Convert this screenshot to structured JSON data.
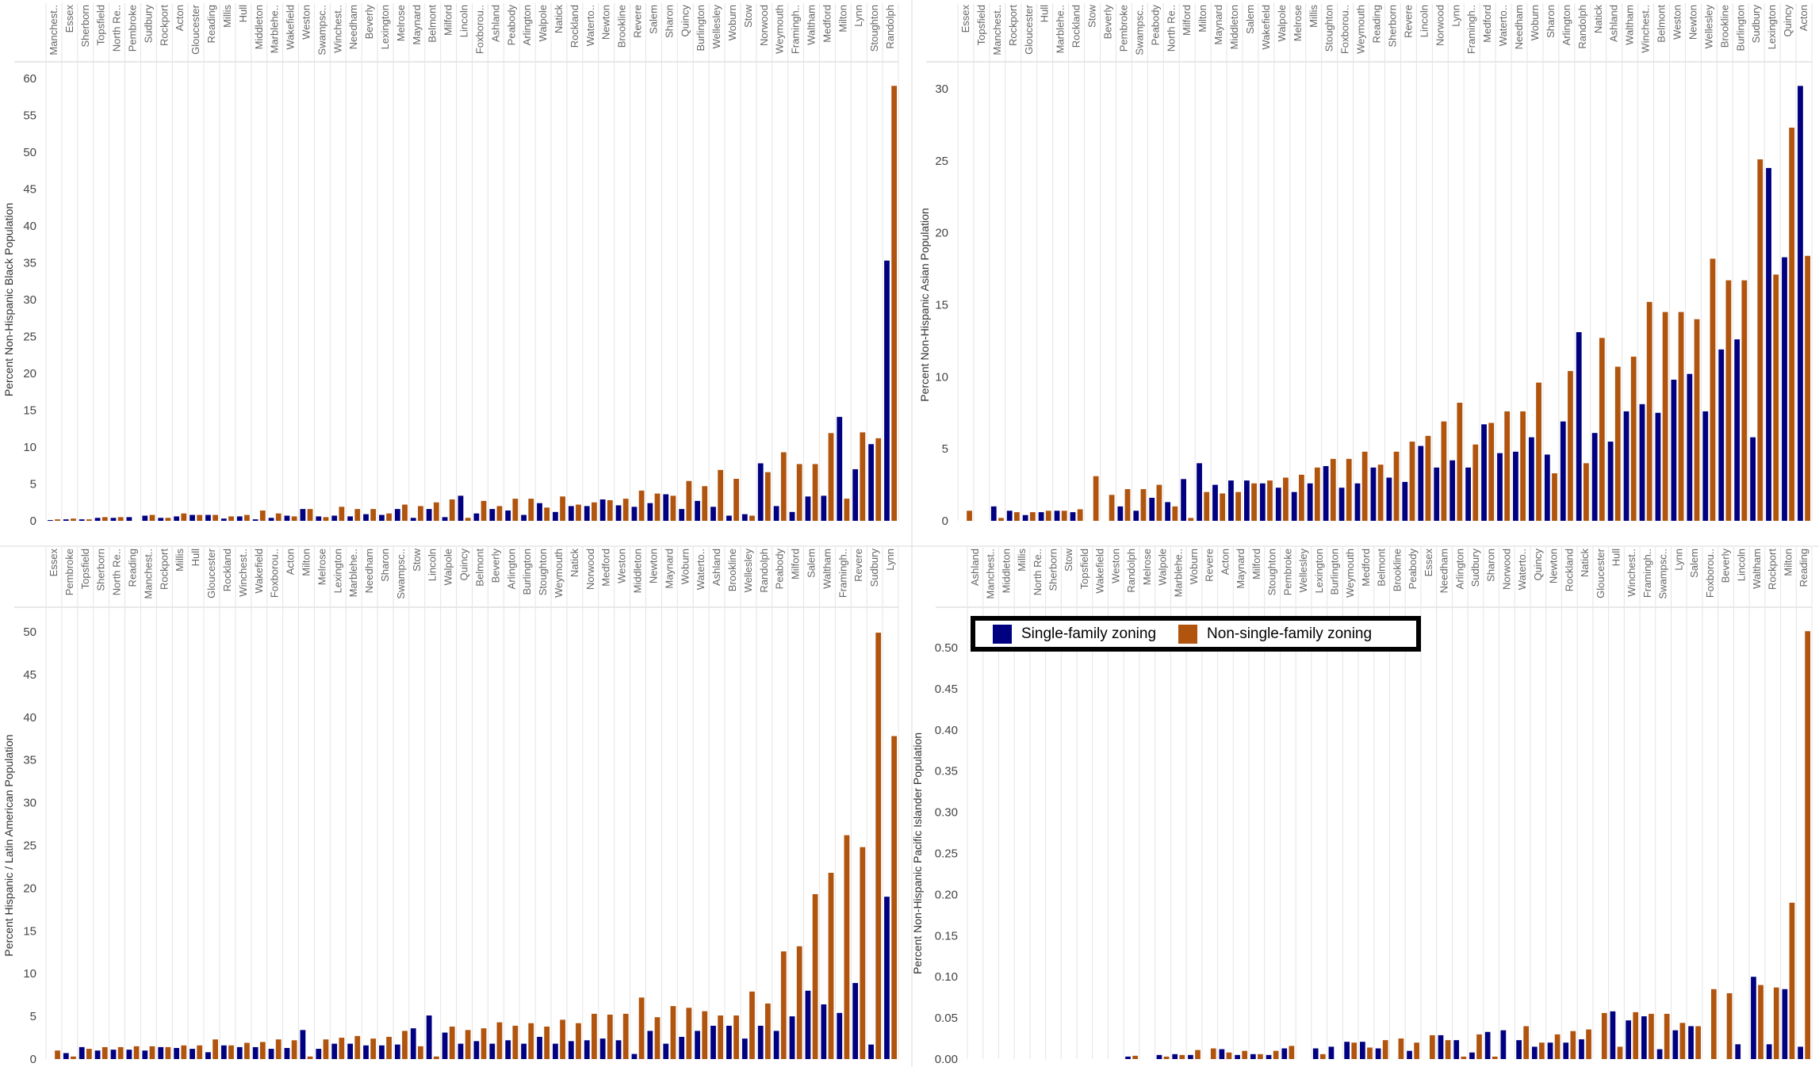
{
  "colors": {
    "single": "#000080",
    "nonsingle": "#B0540E",
    "grid": "#e4e4e4"
  },
  "legend": {
    "single_label": "Single-family zoning",
    "nonsingle_label": "Non-single-family zoning"
  },
  "chart_data": [
    {
      "type": "bar",
      "ylabel": "Percent Non-Hispanic Black Population",
      "ylim": [
        0,
        60
      ],
      "yticks": [
        0,
        5,
        10,
        15,
        20,
        25,
        30,
        35,
        40,
        45,
        50,
        55,
        60
      ],
      "tick_decimals": 0,
      "categories": [
        "Manchest..",
        "Essex",
        "Sherborn",
        "Topsfield",
        "North Re..",
        "Pembroke",
        "Sudbury",
        "Rockport",
        "Acton",
        "Gloucester",
        "Reading",
        "Millis",
        "Hull",
        "Middleton",
        "Marblehe..",
        "Wakefield",
        "Weston",
        "Swampsc..",
        "Winchest..",
        "Needham",
        "Beverly",
        "Lexington",
        "Melrose",
        "Maynard",
        "Belmont",
        "Milford",
        "Lincoln",
        "Foxborou..",
        "Ashland",
        "Peabody",
        "Arlington",
        "Walpole",
        "Natick",
        "Rockland",
        "Waterto..",
        "Newton",
        "Brookline",
        "Revere",
        "Salem",
        "Sharon",
        "Quincy",
        "Burlington",
        "Wellesley",
        "Woburn",
        "Stow",
        "Norwood",
        "Weymouth",
        "Framingh..",
        "Waltham",
        "Medford",
        "Milton",
        "Lynn",
        "Stoughton",
        "Randolph"
      ],
      "series": [
        {
          "name": "Single-family zoning",
          "values": [
            0.1,
            0.2,
            0.2,
            0.4,
            0.4,
            0.5,
            0.7,
            0.4,
            0.6,
            0.8,
            0.8,
            0.3,
            0.6,
            0.2,
            0.4,
            0.7,
            1.6,
            0.6,
            0.7,
            0.6,
            0.9,
            0.8,
            1.6,
            0.4,
            1.6,
            0.5,
            3.4,
            1.0,
            1.6,
            1.4,
            0.8,
            2.4,
            1.2,
            2.0,
            2.0,
            2.9,
            2.1,
            1.9,
            2.4,
            3.6,
            1.6,
            2.7,
            1.9,
            0.7,
            0.9,
            7.8,
            2.0,
            1.2,
            3.3,
            3.4,
            14.1,
            7.0,
            10.4,
            35.3
          ]
        },
        {
          "name": "Non-single-family zoning",
          "values": [
            0.2,
            0.3,
            0.2,
            0.5,
            0.5,
            0.0,
            0.8,
            0.4,
            1.0,
            0.8,
            0.8,
            0.6,
            0.8,
            1.4,
            1.0,
            0.6,
            1.6,
            0.5,
            1.9,
            1.6,
            1.6,
            1.0,
            2.2,
            2.0,
            2.5,
            2.9,
            0.4,
            2.7,
            2.0,
            3.0,
            3.0,
            1.8,
            3.3,
            2.2,
            2.5,
            2.8,
            3.0,
            4.1,
            3.7,
            3.4,
            5.4,
            4.7,
            6.9,
            5.7,
            0.7,
            6.6,
            9.3,
            7.7,
            7.7,
            11.9,
            3.0,
            12.0,
            11.2,
            59.0
          ]
        }
      ]
    },
    {
      "type": "bar",
      "ylabel": "Percent Non-Hispanic Asian Population",
      "ylim": [
        0,
        30
      ],
      "yticks": [
        0,
        5,
        10,
        15,
        20,
        25,
        30
      ],
      "tick_decimals": 0,
      "categories": [
        "Essex",
        "Topsfield",
        "Manchest..",
        "Rockport",
        "Gloucester",
        "Hull",
        "Marblehe..",
        "Rockland",
        "Stow",
        "Beverly",
        "Pembroke",
        "Swampsc..",
        "Peabody",
        "North Re..",
        "Milford",
        "Milton",
        "Maynard",
        "Middleton",
        "Salem",
        "Wakefield",
        "Walpole",
        "Melrose",
        "Millis",
        "Stoughton",
        "Foxborou..",
        "Weymouth",
        "Reading",
        "Sherborn",
        "Revere",
        "Lincoln",
        "Norwood",
        "Lynn",
        "Framingh..",
        "Medford",
        "Waterto..",
        "Needham",
        "Woburn",
        "Sharon",
        "Arlington",
        "Randolph",
        "Natick",
        "Ashland",
        "Waltham",
        "Winchest..",
        "Belmont",
        "Weston",
        "Newton",
        "Wellesley",
        "Brookline",
        "Burlington",
        "Sudbury",
        "Lexington",
        "Quincy",
        "Acton"
      ],
      "series": [
        {
          "name": "Single-family zoning",
          "values": [
            0.0,
            0.0,
            1.0,
            0.7,
            0.4,
            0.6,
            0.7,
            0.6,
            0.0,
            0.0,
            1.0,
            0.7,
            1.6,
            1.3,
            2.9,
            4.0,
            2.5,
            2.8,
            2.8,
            2.6,
            2.3,
            2.0,
            2.6,
            3.8,
            2.3,
            2.6,
            3.7,
            3.0,
            2.7,
            5.2,
            3.7,
            4.2,
            3.7,
            6.7,
            4.7,
            4.8,
            5.8,
            4.6,
            6.9,
            13.1,
            6.1,
            5.5,
            7.6,
            8.1,
            7.5,
            9.8,
            10.2,
            7.6,
            11.9,
            12.6,
            5.8,
            24.5,
            18.3,
            30.2
          ]
        },
        {
          "name": "Non-single-family zoning",
          "values": [
            0.7,
            0.0,
            0.2,
            0.6,
            0.6,
            0.7,
            0.7,
            0.8,
            3.1,
            1.8,
            2.2,
            2.2,
            2.5,
            1.0,
            0.2,
            2.0,
            1.9,
            2.0,
            2.6,
            2.8,
            3.0,
            3.2,
            3.7,
            4.3,
            4.3,
            4.8,
            3.9,
            4.8,
            5.5,
            5.9,
            6.9,
            8.2,
            5.3,
            6.8,
            7.6,
            7.6,
            9.6,
            3.3,
            10.4,
            4.0,
            12.7,
            10.7,
            11.4,
            15.2,
            14.5,
            14.5,
            14.0,
            18.2,
            16.7,
            16.7,
            25.1,
            17.1,
            27.3,
            18.4
          ]
        }
      ]
    },
    {
      "type": "bar",
      "ylabel": "Percent Hispanic / Latin American Population",
      "ylim": [
        0,
        50
      ],
      "yticks": [
        0,
        5,
        10,
        15,
        20,
        25,
        30,
        35,
        40,
        45,
        50
      ],
      "tick_decimals": 0,
      "categories": [
        "Essex",
        "Pembroke",
        "Topsfield",
        "Sherborn",
        "North Re..",
        "Reading",
        "Manchest..",
        "Rockport",
        "Millis",
        "Hull",
        "Gloucester",
        "Rockland",
        "Winchest..",
        "Wakefield",
        "Foxborou..",
        "Acton",
        "Milton",
        "Melrose",
        "Lexington",
        "Marblehe..",
        "Needham",
        "Sharon",
        "Swampsc..",
        "Stow",
        "Lincoln",
        "Walpole",
        "Quincy",
        "Belmont",
        "Beverly",
        "Arlington",
        "Burlington",
        "Stoughton",
        "Weymouth",
        "Natick",
        "Norwood",
        "Medford",
        "Weston",
        "Middleton",
        "Newton",
        "Maynard",
        "Woburn",
        "Waterto..",
        "Ashland",
        "Brookline",
        "Wellesley",
        "Randolph",
        "Peabody",
        "Milford",
        "Salem",
        "Waltham",
        "Framingh..",
        "Revere",
        "Sudbury",
        "Lynn"
      ],
      "series": [
        {
          "name": "Single-family zoning",
          "values": [
            0.0,
            0.7,
            1.4,
            1.0,
            1.1,
            1.1,
            1.0,
            1.4,
            1.3,
            1.2,
            0.8,
            1.6,
            1.4,
            1.4,
            1.2,
            1.3,
            3.4,
            1.2,
            1.8,
            1.8,
            1.6,
            1.6,
            1.7,
            3.6,
            5.1,
            3.1,
            1.8,
            2.1,
            1.8,
            2.2,
            1.8,
            2.6,
            1.8,
            2.1,
            2.2,
            2.4,
            2.2,
            0.6,
            3.3,
            1.8,
            2.6,
            3.3,
            3.9,
            3.9,
            2.4,
            3.9,
            3.3,
            5.0,
            8.0,
            6.4,
            5.4,
            8.9,
            1.7,
            19.0
          ]
        },
        {
          "name": "Non-single-family zoning",
          "values": [
            1.0,
            0.3,
            1.2,
            1.4,
            1.4,
            1.5,
            1.5,
            1.4,
            1.6,
            1.6,
            2.3,
            1.6,
            1.9,
            2.0,
            2.3,
            2.2,
            0.3,
            2.3,
            2.5,
            2.7,
            2.4,
            2.6,
            3.3,
            1.5,
            0.3,
            3.8,
            3.4,
            3.6,
            4.3,
            3.9,
            4.2,
            3.8,
            4.6,
            4.2,
            5.3,
            5.2,
            5.3,
            7.2,
            4.9,
            6.2,
            6.0,
            5.6,
            5.1,
            5.1,
            7.9,
            6.5,
            12.6,
            13.2,
            19.3,
            21.8,
            26.2,
            24.8,
            49.9,
            37.8
          ]
        }
      ]
    },
    {
      "type": "bar",
      "ylabel": "Percent Non-Hispanic Pacific Islander Population",
      "ylim": [
        0,
        0.5
      ],
      "yticks": [
        0,
        0.05,
        0.1,
        0.15,
        0.2,
        0.25,
        0.3,
        0.35,
        0.4,
        0.45,
        0.5
      ],
      "tick_decimals": 2,
      "categories": [
        "Ashland",
        "Manchest..",
        "Middleton",
        "Millis",
        "North Re..",
        "Sherborn",
        "Stow",
        "Topsfield",
        "Wakefield",
        "Weston",
        "Randolph",
        "Melrose",
        "Walpole",
        "Marblehe..",
        "Woburn",
        "Revere",
        "Acton",
        "Maynard",
        "Milford",
        "Stoughton",
        "Pembroke",
        "Wellesley",
        "Lexington",
        "Burlington",
        "Weymouth",
        "Medford",
        "Belmont",
        "Brookline",
        "Peabody",
        "Essex",
        "Needham",
        "Arlington",
        "Sudbury",
        "Sharon",
        "Norwood",
        "Waterto..",
        "Quincy",
        "Newton",
        "Rockland",
        "Natick",
        "Gloucester",
        "Hull",
        "Winchest..",
        "Framingh..",
        "Swampsc..",
        "Lynn",
        "Salem",
        "Foxborou..",
        "Beverly",
        "Lincoln",
        "Waltham",
        "Rockport",
        "Milton",
        "Reading"
      ],
      "series": [
        {
          "name": "Single-family zoning",
          "values": [
            0,
            0,
            0,
            0,
            0,
            0,
            0,
            0,
            0,
            0,
            0.003,
            0,
            0.005,
            0.006,
            0.005,
            0,
            0.012,
            0.005,
            0.006,
            0.005,
            0.013,
            0,
            0.013,
            0.015,
            0.021,
            0.021,
            0.013,
            0,
            0.01,
            0,
            0.029,
            0.023,
            0.008,
            0.033,
            0.035,
            0.023,
            0.015,
            0.02,
            0.02,
            0.024,
            0,
            0.058,
            0.047,
            0.052,
            0.012,
            0.035,
            0.04,
            0,
            0,
            0.018,
            0.1,
            0.018,
            0.085,
            0.015
          ]
        },
        {
          "name": "Non-single-family zoning",
          "values": [
            0,
            0,
            0,
            0,
            0,
            0,
            0,
            0,
            0,
            0,
            0.004,
            0,
            0.003,
            0.005,
            0.011,
            0.013,
            0.008,
            0.01,
            0.006,
            0.01,
            0.016,
            0,
            0.006,
            0,
            0.02,
            0.014,
            0.023,
            0.025,
            0.02,
            0.029,
            0.023,
            0.003,
            0.03,
            0.003,
            0,
            0.04,
            0.02,
            0.03,
            0.034,
            0.036,
            0.056,
            0.015,
            0.057,
            0.055,
            0.055,
            0.044,
            0.04,
            0.085,
            0.08,
            0,
            0.09,
            0.087,
            0.19,
            0.52
          ]
        }
      ]
    }
  ]
}
